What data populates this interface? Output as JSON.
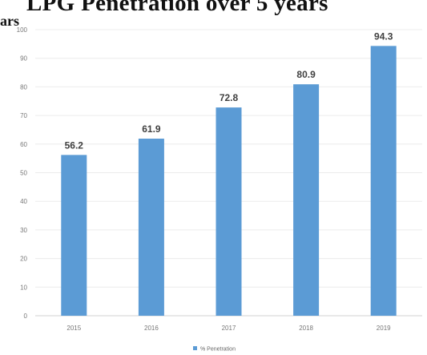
{
  "chart_data": {
    "type": "bar",
    "title": "LPG Penetration over 5 years",
    "title_fragment": "ars",
    "categories": [
      "2015",
      "2016",
      "2017",
      "2018",
      "2019"
    ],
    "series": [
      {
        "name": "% Penetration",
        "values": [
          56.2,
          61.9,
          72.8,
          80.9,
          94.3
        ],
        "color": "#5B9BD5"
      }
    ],
    "ylim": [
      0,
      100
    ],
    "yticks": [
      0,
      10,
      20,
      30,
      40,
      50,
      60,
      70,
      80,
      90,
      100
    ],
    "grid": true,
    "legend_position": "bottom"
  }
}
